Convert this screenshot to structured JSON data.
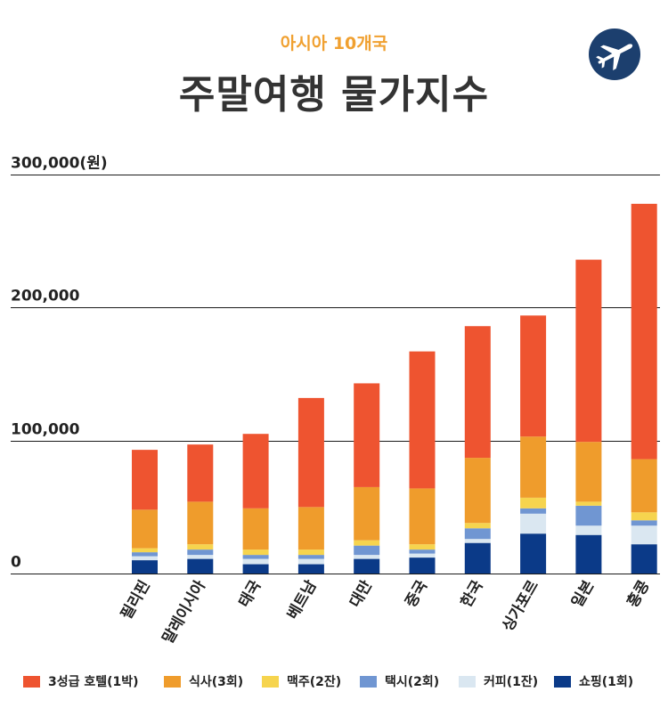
{
  "header": {
    "subtitle": "아시아 10개국",
    "title": "주말여행 물가지수",
    "logo_icon": "airplane-icon"
  },
  "colors": {
    "hotel": "#ee5430",
    "meal": "#ef9c2c",
    "beer": "#f6d44e",
    "taxi": "#7096d2",
    "coffee": "#dae7f1",
    "shopping": "#0b3a88",
    "logo_bg": "#1c3f6e",
    "subtitle": "#f0a030"
  },
  "chart_data": {
    "type": "bar",
    "stacked": true,
    "title": "주말여행 물가지수",
    "subtitle": "아시아 10개국",
    "ylabel": "(원)",
    "ylim": [
      0,
      300000
    ],
    "y_ticks": [
      {
        "value": 0,
        "label": "0"
      },
      {
        "value": 100000,
        "label": "100,000"
      },
      {
        "value": 200000,
        "label": "200,000"
      },
      {
        "value": 300000,
        "label": "300,000(원)"
      }
    ],
    "categories": [
      "필리핀",
      "말레이시아",
      "태국",
      "베트남",
      "대만",
      "중국",
      "한국",
      "싱가포르",
      "일본",
      "홍콩"
    ],
    "series": [
      {
        "name": "쇼핑(1회)",
        "key": "shopping",
        "values": [
          10000,
          11000,
          7000,
          7000,
          11000,
          12000,
          23000,
          30000,
          29000,
          22000
        ]
      },
      {
        "name": "커피(1잔)",
        "key": "coffee",
        "values": [
          3000,
          3000,
          4000,
          4000,
          3000,
          3000,
          3000,
          15000,
          7000,
          14000
        ]
      },
      {
        "name": "택시(2회)",
        "key": "taxi",
        "values": [
          3000,
          4000,
          3000,
          3000,
          7000,
          3000,
          8000,
          4000,
          15000,
          4000
        ]
      },
      {
        "name": "맥주(2잔)",
        "key": "beer",
        "values": [
          3000,
          4000,
          4000,
          4000,
          4000,
          4000,
          4000,
          8000,
          3000,
          6000
        ]
      },
      {
        "name": "식사(3회)",
        "key": "meal",
        "values": [
          29000,
          32000,
          31000,
          32000,
          40000,
          42000,
          49000,
          46000,
          45000,
          40000
        ]
      },
      {
        "name": "3성급 호텔(1박)",
        "key": "hotel",
        "values": [
          45000,
          43000,
          56000,
          82000,
          78000,
          103000,
          99000,
          91000,
          137000,
          192000
        ]
      }
    ],
    "legend_order": [
      "hotel",
      "meal",
      "beer",
      "taxi",
      "coffee",
      "shopping"
    ],
    "legend_position": "bottom"
  }
}
